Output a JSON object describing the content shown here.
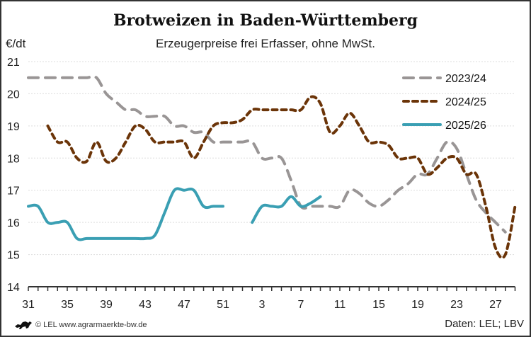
{
  "chart_data": {
    "type": "line",
    "title": "Brotweizen in Baden-Württemberg",
    "subtitle": "Erzeugerpreise frei Erfasser, ohne MwSt.",
    "ylabel": "€/dt",
    "ylim": [
      14,
      21
    ],
    "yticks": [
      14,
      15,
      16,
      17,
      18,
      19,
      20,
      21
    ],
    "x_weeks": [
      31,
      32,
      33,
      34,
      35,
      36,
      37,
      38,
      39,
      40,
      41,
      42,
      43,
      44,
      45,
      46,
      47,
      48,
      49,
      50,
      51,
      52,
      1,
      2,
      3,
      4,
      5,
      6,
      7,
      8,
      9,
      10,
      11,
      12,
      13,
      14,
      15,
      16,
      17,
      18,
      19,
      20,
      21,
      22,
      23,
      24,
      25,
      26,
      27,
      28,
      29
    ],
    "xtick_labels": [
      "31",
      "35",
      "39",
      "43",
      "47",
      "51",
      "3",
      "7",
      "11",
      "15",
      "19",
      "23",
      "27"
    ],
    "grid": "horizontal",
    "legend_position": "top-right",
    "series": [
      {
        "name": "2023/24",
        "color": "#999595",
        "style": "long-dash",
        "values": [
          20.5,
          20.5,
          20.5,
          20.5,
          20.5,
          20.5,
          20.5,
          20.5,
          20.0,
          19.75,
          19.5,
          19.5,
          19.3,
          19.3,
          19.3,
          19.0,
          19.0,
          18.8,
          18.8,
          18.5,
          18.5,
          18.5,
          18.5,
          18.5,
          18.0,
          18.0,
          18.0,
          17.3,
          16.5,
          16.5,
          16.5,
          16.5,
          16.5,
          17.0,
          16.9,
          16.6,
          16.5,
          16.7,
          17.0,
          17.2,
          17.5,
          17.5,
          18.0,
          18.5,
          18.3,
          17.5,
          16.7,
          16.3,
          16.0,
          15.7,
          null
        ]
      },
      {
        "name": "2024/25",
        "color": "#6b3408",
        "style": "short-dash",
        "values": [
          null,
          null,
          19.0,
          18.5,
          18.5,
          18.0,
          17.9,
          18.5,
          17.9,
          18.0,
          18.5,
          19.0,
          18.9,
          18.5,
          18.5,
          18.5,
          18.5,
          18.0,
          18.5,
          19.0,
          19.1,
          19.1,
          19.2,
          19.5,
          19.5,
          19.5,
          19.5,
          19.5,
          19.5,
          19.9,
          19.7,
          18.8,
          19.0,
          19.4,
          19.0,
          18.5,
          18.5,
          18.4,
          18.0,
          18.0,
          18.0,
          17.5,
          17.7,
          18.0,
          18.0,
          17.5,
          17.5,
          16.5,
          15.2,
          15.0,
          16.5
        ]
      },
      {
        "name": "2025/26",
        "color": "#3a9fb3",
        "style": "solid",
        "values": [
          16.5,
          16.5,
          16.0,
          16.0,
          16.0,
          15.5,
          15.5,
          15.5,
          15.5,
          15.5,
          15.5,
          15.5,
          15.5,
          15.6,
          16.3,
          17.0,
          17.0,
          17.0,
          16.5,
          16.5,
          16.5,
          null,
          null,
          16.0,
          16.5,
          16.5,
          16.5,
          16.8,
          16.5,
          16.6,
          16.8,
          null,
          null,
          null,
          null,
          null,
          null,
          null,
          null,
          null,
          null,
          null,
          null,
          null,
          null,
          null,
          null,
          null,
          null,
          null,
          null
        ]
      }
    ]
  },
  "footer": {
    "credit": "© LEL www.agrarmaerkte-bw.de",
    "source": "Daten: LEL; LBV",
    "logo_icon": "lion-icon"
  }
}
